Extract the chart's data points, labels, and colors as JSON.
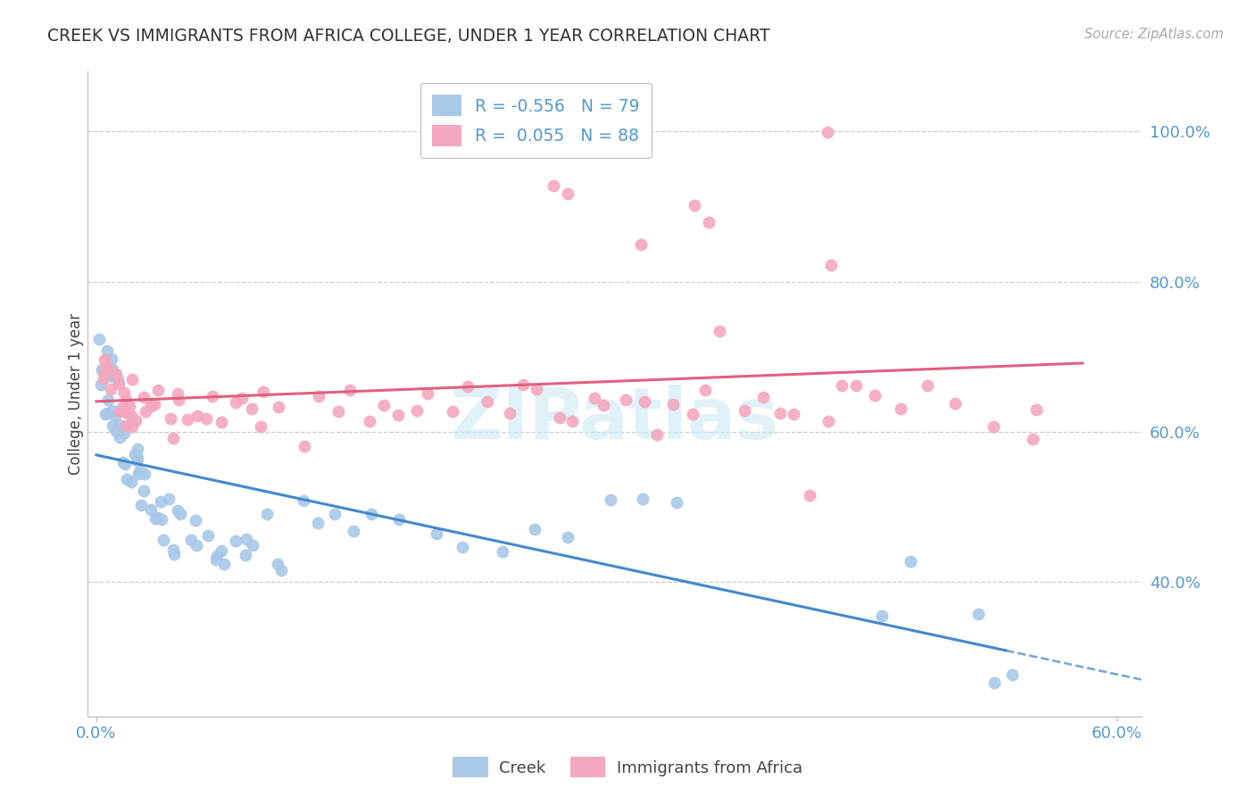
{
  "title": "CREEK VS IMMIGRANTS FROM AFRICA COLLEGE, UNDER 1 YEAR CORRELATION CHART",
  "source": "Source: ZipAtlas.com",
  "ylabel": "College, Under 1 year",
  "xlim": [
    -0.005,
    0.615
  ],
  "ylim": [
    0.22,
    1.08
  ],
  "yticks": [
    0.4,
    0.6,
    0.8,
    1.0
  ],
  "ytick_labels": [
    "40.0%",
    "60.0%",
    "80.0%",
    "100.0%"
  ],
  "xticks": [
    0.0,
    0.6
  ],
  "xtick_labels": [
    "0.0%",
    "60.0%"
  ],
  "creek_color": "#a8c8e8",
  "africa_color": "#f4a8be",
  "creek_line_color": "#4488cc",
  "africa_line_color": "#e06080",
  "creek_R": -0.556,
  "creek_N": 79,
  "africa_R": 0.055,
  "africa_N": 88,
  "watermark": "ZIPatlas",
  "legend_labels": [
    "Creek",
    "Immigrants from Africa"
  ],
  "background_color": "#ffffff",
  "grid_color": "#cccccc",
  "tick_color": "#5599cc",
  "creek_x": [
    0.002,
    0.003,
    0.004,
    0.004,
    0.005,
    0.005,
    0.006,
    0.006,
    0.007,
    0.007,
    0.008,
    0.008,
    0.009,
    0.009,
    0.01,
    0.01,
    0.011,
    0.012,
    0.013,
    0.014,
    0.015,
    0.016,
    0.017,
    0.018,
    0.019,
    0.02,
    0.022,
    0.023,
    0.024,
    0.025,
    0.026,
    0.028,
    0.03,
    0.032,
    0.034,
    0.035,
    0.037,
    0.038,
    0.04,
    0.042,
    0.044,
    0.046,
    0.048,
    0.05,
    0.052,
    0.055,
    0.058,
    0.06,
    0.065,
    0.068,
    0.07,
    0.073,
    0.075,
    0.08,
    0.085,
    0.09,
    0.095,
    0.1,
    0.105,
    0.11,
    0.12,
    0.13,
    0.14,
    0.15,
    0.16,
    0.18,
    0.2,
    0.22,
    0.24,
    0.26,
    0.28,
    0.3,
    0.32,
    0.34,
    0.46,
    0.48,
    0.52,
    0.53,
    0.54
  ],
  "creek_y": [
    0.72,
    0.68,
    0.7,
    0.65,
    0.69,
    0.66,
    0.68,
    0.64,
    0.67,
    0.63,
    0.66,
    0.62,
    0.65,
    0.61,
    0.64,
    0.6,
    0.63,
    0.62,
    0.61,
    0.6,
    0.59,
    0.58,
    0.57,
    0.56,
    0.55,
    0.54,
    0.57,
    0.56,
    0.55,
    0.53,
    0.52,
    0.51,
    0.54,
    0.53,
    0.52,
    0.5,
    0.49,
    0.48,
    0.51,
    0.5,
    0.48,
    0.47,
    0.46,
    0.49,
    0.48,
    0.46,
    0.45,
    0.48,
    0.47,
    0.44,
    0.43,
    0.46,
    0.45,
    0.43,
    0.42,
    0.45,
    0.44,
    0.47,
    0.43,
    0.42,
    0.5,
    0.49,
    0.47,
    0.46,
    0.5,
    0.48,
    0.47,
    0.45,
    0.44,
    0.46,
    0.45,
    0.52,
    0.5,
    0.51,
    0.38,
    0.42,
    0.38,
    0.27,
    0.26
  ],
  "africa_x": [
    0.003,
    0.005,
    0.006,
    0.007,
    0.008,
    0.009,
    0.01,
    0.011,
    0.012,
    0.013,
    0.014,
    0.015,
    0.016,
    0.017,
    0.018,
    0.019,
    0.02,
    0.022,
    0.023,
    0.025,
    0.027,
    0.03,
    0.033,
    0.035,
    0.038,
    0.04,
    0.043,
    0.046,
    0.05,
    0.055,
    0.06,
    0.065,
    0.07,
    0.075,
    0.08,
    0.085,
    0.09,
    0.095,
    0.1,
    0.11,
    0.12,
    0.13,
    0.14,
    0.15,
    0.16,
    0.17,
    0.18,
    0.19,
    0.2,
    0.21,
    0.22,
    0.23,
    0.24,
    0.25,
    0.26,
    0.27,
    0.28,
    0.29,
    0.3,
    0.31,
    0.32,
    0.33,
    0.34,
    0.35,
    0.36,
    0.37,
    0.38,
    0.39,
    0.4,
    0.41,
    0.42,
    0.43,
    0.44,
    0.45,
    0.46,
    0.47,
    0.49,
    0.51,
    0.53,
    0.55,
    0.36,
    0.32,
    0.28,
    0.43,
    0.35,
    0.27,
    0.43,
    0.555
  ],
  "africa_y": [
    0.68,
    0.7,
    0.67,
    0.69,
    0.65,
    0.68,
    0.66,
    0.64,
    0.67,
    0.65,
    0.63,
    0.66,
    0.64,
    0.62,
    0.65,
    0.63,
    0.61,
    0.64,
    0.62,
    0.63,
    0.65,
    0.62,
    0.64,
    0.63,
    0.65,
    0.62,
    0.63,
    0.64,
    0.65,
    0.62,
    0.64,
    0.63,
    0.65,
    0.62,
    0.64,
    0.65,
    0.63,
    0.62,
    0.64,
    0.65,
    0.62,
    0.63,
    0.64,
    0.65,
    0.62,
    0.63,
    0.64,
    0.62,
    0.65,
    0.63,
    0.64,
    0.62,
    0.63,
    0.65,
    0.63,
    0.64,
    0.62,
    0.65,
    0.63,
    0.64,
    0.62,
    0.63,
    0.65,
    0.63,
    0.64,
    0.72,
    0.63,
    0.64,
    0.62,
    0.63,
    0.51,
    0.62,
    0.63,
    0.64,
    0.65,
    0.62,
    0.63,
    0.64,
    0.62,
    0.585,
    0.86,
    0.87,
    0.92,
    1.01,
    0.9,
    0.95,
    0.84,
    0.59
  ]
}
